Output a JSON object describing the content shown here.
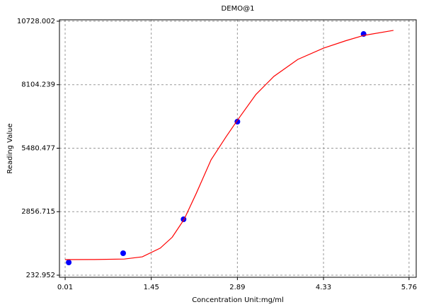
{
  "chart_data": {
    "type": "scatter",
    "title": "DEMO@1",
    "xlabel": "Concentration Unit:mg/ml",
    "ylabel": "Reading Value",
    "xlim": [
      -0.085,
      5.88
    ],
    "ylim": [
      145,
      10786
    ],
    "xticks": [
      0.01,
      1.45,
      2.89,
      4.33,
      5.76
    ],
    "yticks": [
      232.952,
      2856.715,
      5480.477,
      8104.239,
      10728.002
    ],
    "grid": true,
    "series": [
      {
        "color": "#0000ff",
        "style": "markers",
        "x": [
          0.07,
          0.98,
          1.99,
          2.89,
          5.0
        ],
        "values": [
          759,
          1139,
          2542,
          6576,
          10200
        ]
      },
      {
        "color": "#ff0000",
        "style": "line",
        "x": [
          0.01,
          0.5,
          1.0,
          1.3,
          1.6,
          1.8,
          2.0,
          2.2,
          2.45,
          2.7,
          2.89,
          3.2,
          3.5,
          3.9,
          4.33,
          4.7,
          5.0,
          5.5
        ],
        "values": [
          876,
          880,
          900,
          990,
          1350,
          1800,
          2543,
          3600,
          5000,
          5950,
          6634,
          7700,
          8447,
          9150,
          9616,
          9920,
          10140,
          10350
        ]
      }
    ]
  }
}
